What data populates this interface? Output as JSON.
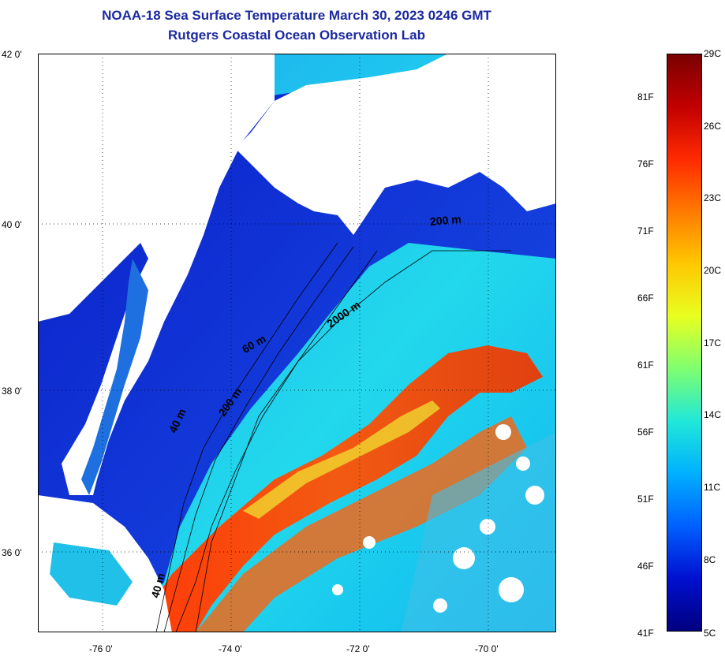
{
  "title": {
    "line1": "NOAA-18 Sea Surface Temperature March 30, 2023 0246 GMT",
    "line2": "Rutgers Coastal Ocean Observation Lab"
  },
  "axes": {
    "lat_ticks": [
      "42 0'",
      "40 0'",
      "38 0'",
      "36 0'"
    ],
    "lon_ticks": [
      "-76 0'",
      "-74 0'",
      "-72 0'",
      "-70 0'"
    ]
  },
  "colorbar": {
    "fahrenheit": [
      "81F",
      "76F",
      "71F",
      "66F",
      "61F",
      "56F",
      "51F",
      "46F",
      "41F"
    ],
    "celsius": [
      "29C",
      "26C",
      "23C",
      "20C",
      "17C",
      "14C",
      "11C",
      "8C",
      "5C"
    ],
    "colors": [
      "#7a0000",
      "#c20000",
      "#ff2a00",
      "#ff7a00",
      "#ffc800",
      "#e8ff20",
      "#7fff70",
      "#20e8d8",
      "#00b0ff",
      "#0060ff",
      "#0010d0",
      "#000080"
    ]
  },
  "contours": {
    "labels": [
      "200 m",
      "2000 m",
      "60 m",
      "200 m",
      "40 m",
      "40 m"
    ]
  },
  "colors": {
    "land": "#ffffff",
    "cold_water": "#0a30d8",
    "mid_water": "#17c6f0",
    "warm_water": "#f04a10",
    "title": "#1c2aa0"
  }
}
